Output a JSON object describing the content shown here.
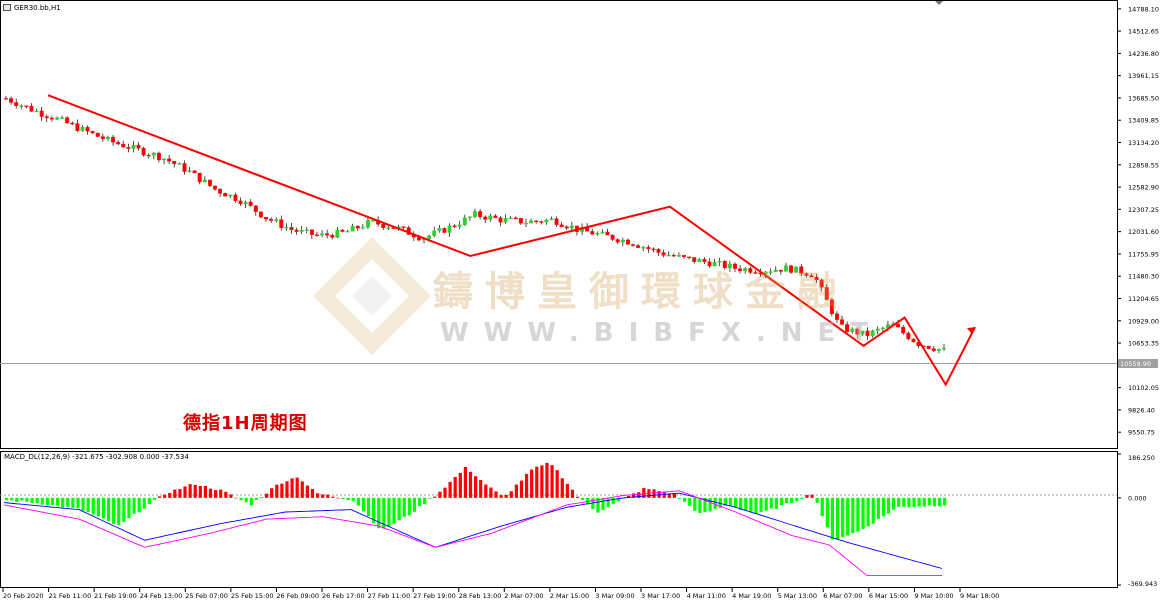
{
  "window": {
    "symbol_label": "GER30.bb,H1",
    "annotation": "德指1H周期图",
    "watermark_cn": "鑄博皇御環球金融",
    "watermark_url": "WWW.BIBFX.NET"
  },
  "chart_data": [
    {
      "type": "candlestick",
      "title": "",
      "symbol": "GER30.bb,H1",
      "y_ticks": [
        "14788.10",
        "14512.65",
        "14236.80",
        "13961.15",
        "13685.50",
        "13409.85",
        "13134.20",
        "12858.55",
        "12582.90",
        "12307.25",
        "12031.60",
        "11755.95",
        "11480.30",
        "11204.65",
        "10929.00",
        "10653.35",
        "10102.05",
        "9826.40",
        "9550.75"
      ],
      "ylim": [
        9380,
        14860
      ],
      "current_price": "10559.90",
      "x_ticks": [
        "20 Feb 2020",
        "21 Feb 11:00",
        "21 Feb 19:00",
        "24 Feb 13:00",
        "25 Feb 07:00",
        "25 Feb 15:00",
        "26 Feb 09:00",
        "26 Feb 17:00",
        "27 Feb 11:00",
        "27 Feb 19:00",
        "28 Feb 13:00",
        "2 Mar 07:00",
        "2 Mar 15:00",
        "3 Mar 09:00",
        "3 Mar 17:00",
        "4 Mar 11:00",
        "4 Mar 19:00",
        "5 Mar 13:00",
        "6 Mar 07:00",
        "6 Mar 15:00",
        "9 Mar 10:00",
        "9 Mar 18:00"
      ],
      "path_waypoints": [
        13680,
        13540,
        13420,
        13280,
        13150,
        13050,
        12950,
        12780,
        12560,
        12420,
        12200,
        12050,
        11980,
        12020,
        12150,
        12080,
        11950,
        12080,
        12240,
        12180,
        12150,
        12180,
        12050,
        11980,
        11900,
        11780,
        11700,
        11650,
        11580,
        11550,
        11580,
        11500,
        10850,
        10750,
        10880,
        10650,
        10560
      ],
      "candle_color_up": "#32cd32",
      "candle_color_down": "#ff0000",
      "trendlines": [
        {
          "color": "#ff0000",
          "points": [
            [
              13720,
              0.045
            ],
            [
              11730,
              0.405
            ],
            [
              12340,
              0.575
            ],
            [
              10620,
              0.74
            ],
            [
              10970,
              0.775
            ],
            [
              10140,
              0.81
            ],
            [
              10850,
              0.835
            ]
          ]
        }
      ]
    },
    {
      "type": "bar",
      "title": "",
      "label": "MACD_DL(12,26,9) -321.675 -302.908 0.000 -37.534",
      "y_ticks": [
        "186.250",
        "0.000",
        "-369.943"
      ],
      "ylim": [
        -369.943,
        186.25
      ],
      "histogram_color_pos": "#ff0000",
      "histogram_color_neg": "#00ff00",
      "histogram_keyframes": [
        [
          0,
          -10
        ],
        [
          0.03,
          -20
        ],
        [
          0.08,
          -50
        ],
        [
          0.12,
          -120
        ],
        [
          0.14,
          -60
        ],
        [
          0.17,
          20
        ],
        [
          0.2,
          60
        ],
        [
          0.23,
          30
        ],
        [
          0.26,
          -30
        ],
        [
          0.29,
          60
        ],
        [
          0.31,
          90
        ],
        [
          0.33,
          20
        ],
        [
          0.37,
          -10
        ],
        [
          0.4,
          -140
        ],
        [
          0.43,
          -70
        ],
        [
          0.46,
          20
        ],
        [
          0.49,
          130
        ],
        [
          0.51,
          60
        ],
        [
          0.53,
          0
        ],
        [
          0.56,
          120
        ],
        [
          0.58,
          150
        ],
        [
          0.61,
          0
        ],
        [
          0.63,
          -60
        ],
        [
          0.65,
          -20
        ],
        [
          0.68,
          40
        ],
        [
          0.71,
          20
        ],
        [
          0.74,
          -70
        ],
        [
          0.77,
          -30
        ],
        [
          0.8,
          -70
        ],
        [
          0.83,
          -30
        ],
        [
          0.86,
          20
        ],
        [
          0.88,
          -180
        ],
        [
          0.91,
          -140
        ],
        [
          0.95,
          -40
        ],
        [
          1.0,
          -30
        ]
      ],
      "lines": [
        {
          "name": "",
          "color": "#0000ff",
          "keyframes": [
            [
              0,
              -20
            ],
            [
              0.08,
              -50
            ],
            [
              0.15,
              -180
            ],
            [
              0.23,
              -110
            ],
            [
              0.3,
              -60
            ],
            [
              0.37,
              -50
            ],
            [
              0.46,
              -210
            ],
            [
              0.53,
              -120
            ],
            [
              0.6,
              -40
            ],
            [
              0.66,
              0
            ],
            [
              0.72,
              20
            ],
            [
              0.78,
              -40
            ],
            [
              0.86,
              -140
            ],
            [
              0.9,
              -190
            ],
            [
              1.0,
              -300
            ]
          ]
        },
        {
          "name": "",
          "color": "#ff00ff",
          "keyframes": [
            [
              0,
              -30
            ],
            [
              0.08,
              -90
            ],
            [
              0.15,
              -210
            ],
            [
              0.22,
              -150
            ],
            [
              0.28,
              -90
            ],
            [
              0.34,
              -80
            ],
            [
              0.4,
              -120
            ],
            [
              0.46,
              -210
            ],
            [
              0.52,
              -150
            ],
            [
              0.6,
              -30
            ],
            [
              0.66,
              10
            ],
            [
              0.72,
              30
            ],
            [
              0.78,
              -60
            ],
            [
              0.84,
              -160
            ],
            [
              0.88,
              -200
            ],
            [
              0.92,
              -330
            ],
            [
              1.0,
              -330
            ]
          ]
        }
      ]
    }
  ]
}
